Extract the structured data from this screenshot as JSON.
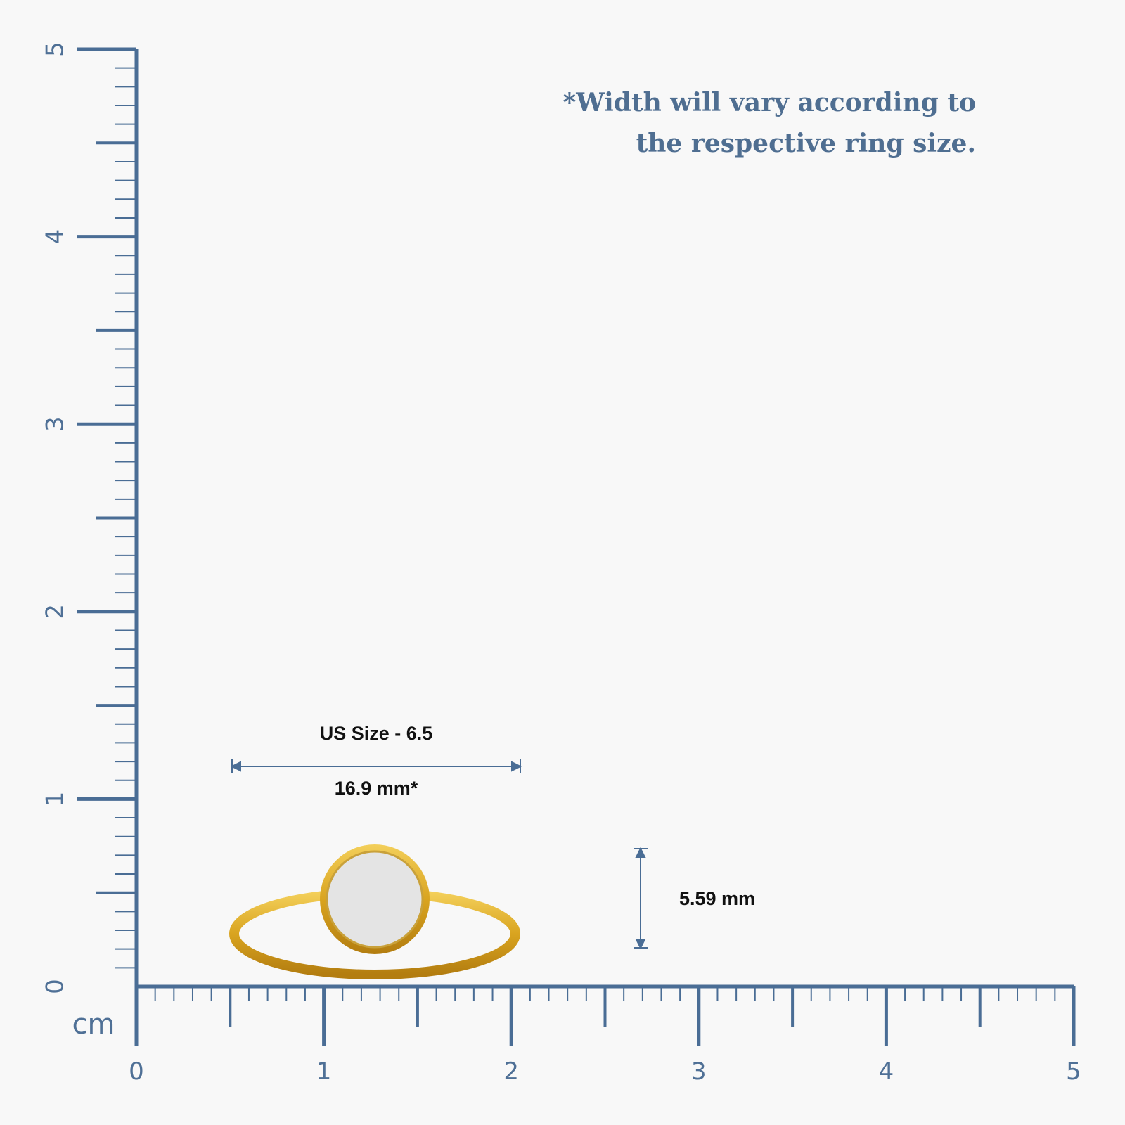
{
  "note": {
    "lines": [
      "*Width will vary according to",
      "the respective ring size."
    ]
  },
  "ruler": {
    "unit": "cm",
    "labels": [
      "0",
      "1",
      "2",
      "3",
      "4",
      "5"
    ]
  },
  "ring": {
    "size_label": "US Size - 6.5",
    "width_label": "16.9 mm*",
    "height_label": "5.59 mm"
  }
}
